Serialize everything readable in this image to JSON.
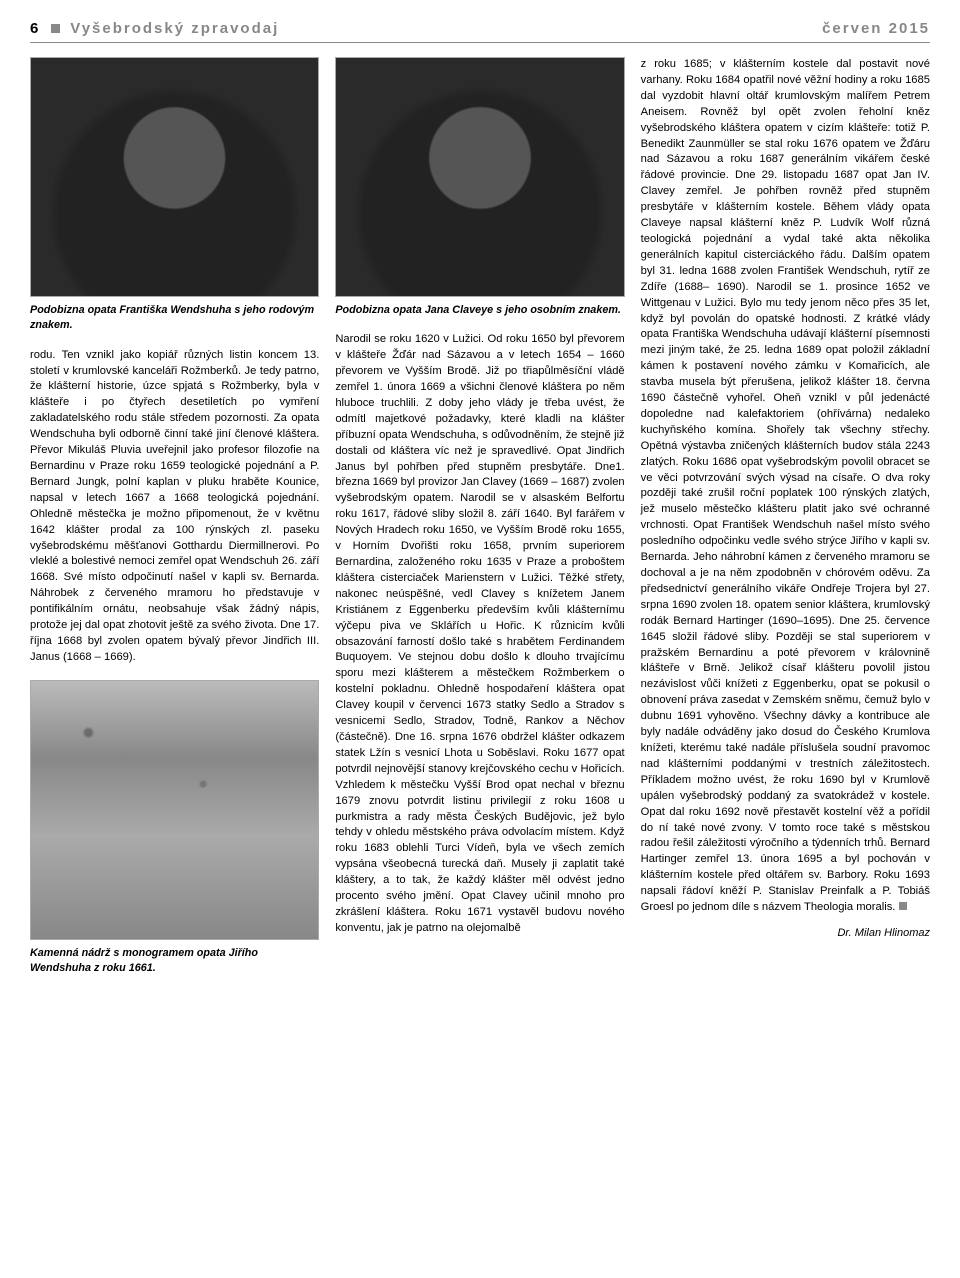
{
  "header": {
    "page_number": "6",
    "title_left": "Vyšebrodský zpravodaj",
    "title_right": "červen 2015"
  },
  "col1": {
    "caption": "Podobizna opata Františka Wendshuha s jeho rodovým znakem.",
    "body": "rodu. Ten vznikl jako kopiář různých listin koncem 13. století v krumlovské kanceláři Rožmberků. Je tedy patrno, že klášterní historie, úzce spjatá s Rožmberky, byla v klášteře i po čtyřech desetiletích po vymření zakladatelského rodu stále středem pozornosti.\n\nZa opata Wendschuha byli odborně činní také jiní členové kláštera. Převor Mikuláš Pluvia uveřejnil jako profesor filozofie na Bernardinu v Praze roku 1659 teologické pojednání a P. Bernard Jungk, polní kaplan v pluku hraběte Kounice, napsal v letech 1667 a 1668 teologická pojednání. Ohledně městečka je možno připomenout, že v květnu 1642 klášter prodal za 100 rýnských zl. paseku vyšebrodskému měšťanovi Gotthardu Diermillnerovi. Po vleklé a bolestivé nemoci zemřel opat Wendschuh 26. září 1668. Své místo odpočinutí našel v kapli sv. Bernarda. Náhrobek z červeného mramoru ho představuje v pontifikálním ornátu, neobsahuje však žádný nápis, protože jej dal opat zhotovit ještě za svého života. Dne 17. října 1668 byl zvolen opatem bývalý převor Jindřich III. Janus (1668 – 1669).",
    "caption2": "Kamenná nádrž s monogramem opata Jiřího Wendshuha z roku 1661."
  },
  "col2": {
    "caption": "Podobizna opata Jana Claveye s jeho osobním znakem.",
    "body": "Narodil se roku 1620 v Lužici. Od roku 1650 byl převorem v klášteře Žďár nad Sázavou a v letech 1654 – 1660 převorem ve Vyšším Brodě. Již po třiapůlměsíční vládě zemřel 1. února 1669 a všichni členové kláštera po něm hluboce truchlili. Z doby jeho vlády je třeba uvést, že odmítl majetkové požadavky, které kladli na klášter příbuzní opata Wendschuha, s odůvodněním, že stejně již dostali od kláštera víc než je spravedlivé. Opat Jindřich Janus byl pohřben před stupněm presbytáře. Dne1. března 1669 byl provizor Jan Clavey (1669 – 1687) zvolen vyšebrodským opatem. Narodil se v alsaském Belfortu roku 1617, řádové sliby složil 8. září 1640. Byl farářem v Nových Hradech roku 1650, ve Vyšším Brodě roku 1655, v Horním Dvořišti roku 1658, prvním superiorem Bernardina, založeného roku 1635 v Praze a proboštem kláštera cisterciaček Marienstern v Lužici. Těžké střety, nakonec neúspěšné, vedl Clavey s knížetem Janem Kristiánem z Eggenberku především kvůli klášternímu výčepu piva ve Sklářích u Hořic. K různicím kvůli obsazování farností došlo také s hrabětem Ferdinandem Buquoyem. Ve stejnou dobu došlo k dlouho trvajícímu sporu mezi klášterem a městečkem Rožmberkem o kostelní pokladnu. Ohledně hospodaření kláštera opat Clavey koupil v červenci 1673 statky Sedlo a Stradov s vesnicemi Sedlo, Stradov, Todně, Rankov a Něchov (částečně). Dne 16. srpna 1676 obdržel klášter odkazem statek Lžín s vesnicí Lhota u Soběslavi. Roku 1677 opat potvrdil nejnovější stanovy krejčovského cechu v Hořicích. Vzhledem k městečku Vyšší Brod opat nechal v březnu 1679 znovu potvrdit listinu privilegií z roku 1608 u purkmistra a rady města Českých Budějovic, jež bylo tehdy v ohledu městského práva odvolacím místem. Když roku 1683 oblehli Turci Vídeň, byla ve všech zemích vypsána všeobecná turecká daň. Musely ji zaplatit také kláštery, a to tak, že každý klášter měl odvést jedno procento svého jmění. Opat Clavey učinil mnoho pro zkrášlení kláštera. Roku 1671 vystavěl budovu nového konventu, jak je patrno na olejomalbě"
  },
  "col3": {
    "body": "z roku 1685; v klášterním kostele dal postavit nové varhany. Roku 1684 opatřil nové věžní hodiny a roku 1685 dal vyzdobit hlavní oltář krumlovským malířem Petrem Aneisem. Rovněž byl opět zvolen řeholní kněz vyšebrodského kláštera opatem v cizím klášteře: totiž P. Benedikt Zaunmüller se stal roku 1676 opatem ve Žďáru nad Sázavou a roku 1687 generálním vikářem české řádové provincie. Dne 29. listopadu 1687 opat Jan IV. Clavey zemřel. Je pohřben rovněž před stupněm presbytáře v klášterním kostele. Během vlády opata Claveye napsal klášterní kněz P. Ludvík Wolf různá teologická pojednání a vydal také akta několika generálních kapitul cisterciáckého řádu. Dalším opatem byl 31. ledna 1688 zvolen František Wendschuh, rytíř ze Zdíře (1688– 1690). Narodil se 1. prosince 1652 ve Wittgenau v Lužici. Bylo mu tedy jenom něco přes 35 let, když byl povolán do opatské hodnosti. Z krátké vlády opata Františka Wendschuha udávají klášterní písemnosti mezi jiným také, že 25. ledna 1689 opat položil základní kámen k postavení nového zámku v Komařicích, ale stavba musela být přerušena, jelikož klášter 18. června 1690 částečně vyhořel. Oheň vznikl v půl jedenácté dopoledne nad kalefaktoriem (ohřívárna) nedaleko kuchyňského komína. Shořely tak všechny střechy. Opětná výstavba zničených klášterních budov stála 2243 zlatých. Roku 1686 opat vyšebrodským povolil obracet se ve věci potvrzování svých výsad na císaře. O dva roky později také zrušil roční poplatek 100 rýnských zlatých, jež muselo městečko klášteru platit jako své ochranné vrchnosti. Opat František Wendschuh našel místo svého posledního odpočinku vedle svého strýce Jiřího v kapli sv. Bernarda. Jeho náhrobní kámen z červeného mramoru se dochoval a je na něm zpodobněn v chórovém oděvu. Za předsednictví generálního vikáře Ondřeje Trojera byl 27. srpna 1690 zvolen 18. opatem senior kláštera, krumlovský rodák Bernard Hartinger (1690–1695). Dne 25. července 1645 složil řádové sliby. Později se stal superiorem v pražském Bernardinu a poté převorem v královnině klášteře v Brně. Jelikož císař klášteru povolil jistou nezávislost vůči knížeti z Eggenberku, opat se pokusil o obnovení práva zasedat v Zemském sněmu, čemuž bylo v dubnu 1691 vyhověno. Všechny dávky a kontribuce ale byly nadále odváděny jako dosud do Českého Krumlova knížeti, kterému také nadále příslušela soudní pravomoc nad klášterními poddanými v trestních záležitostech. Příkladem možno uvést, že roku 1690 byl v Krumlově upálen vyšebrodský poddaný za svatokrádež v kostele. Opat dal roku 1692 nově přestavět kostelní věž a pořídil do ní také nové zvony. V tomto roce také s městskou radou řešil záležitosti výročního a týdenních trhů. Bernard Hartinger zemřel 13. února 1695 a byl pochován v klášterním kostele před oltářem sv. Barbory. Roku 1693 napsali řádoví kněží P. Stanislav Preinfalk a P. Tobiáš Groesl po jednom díle s názvem Theologia moralis.",
    "author": "Dr. Milan Hlinomaz"
  }
}
